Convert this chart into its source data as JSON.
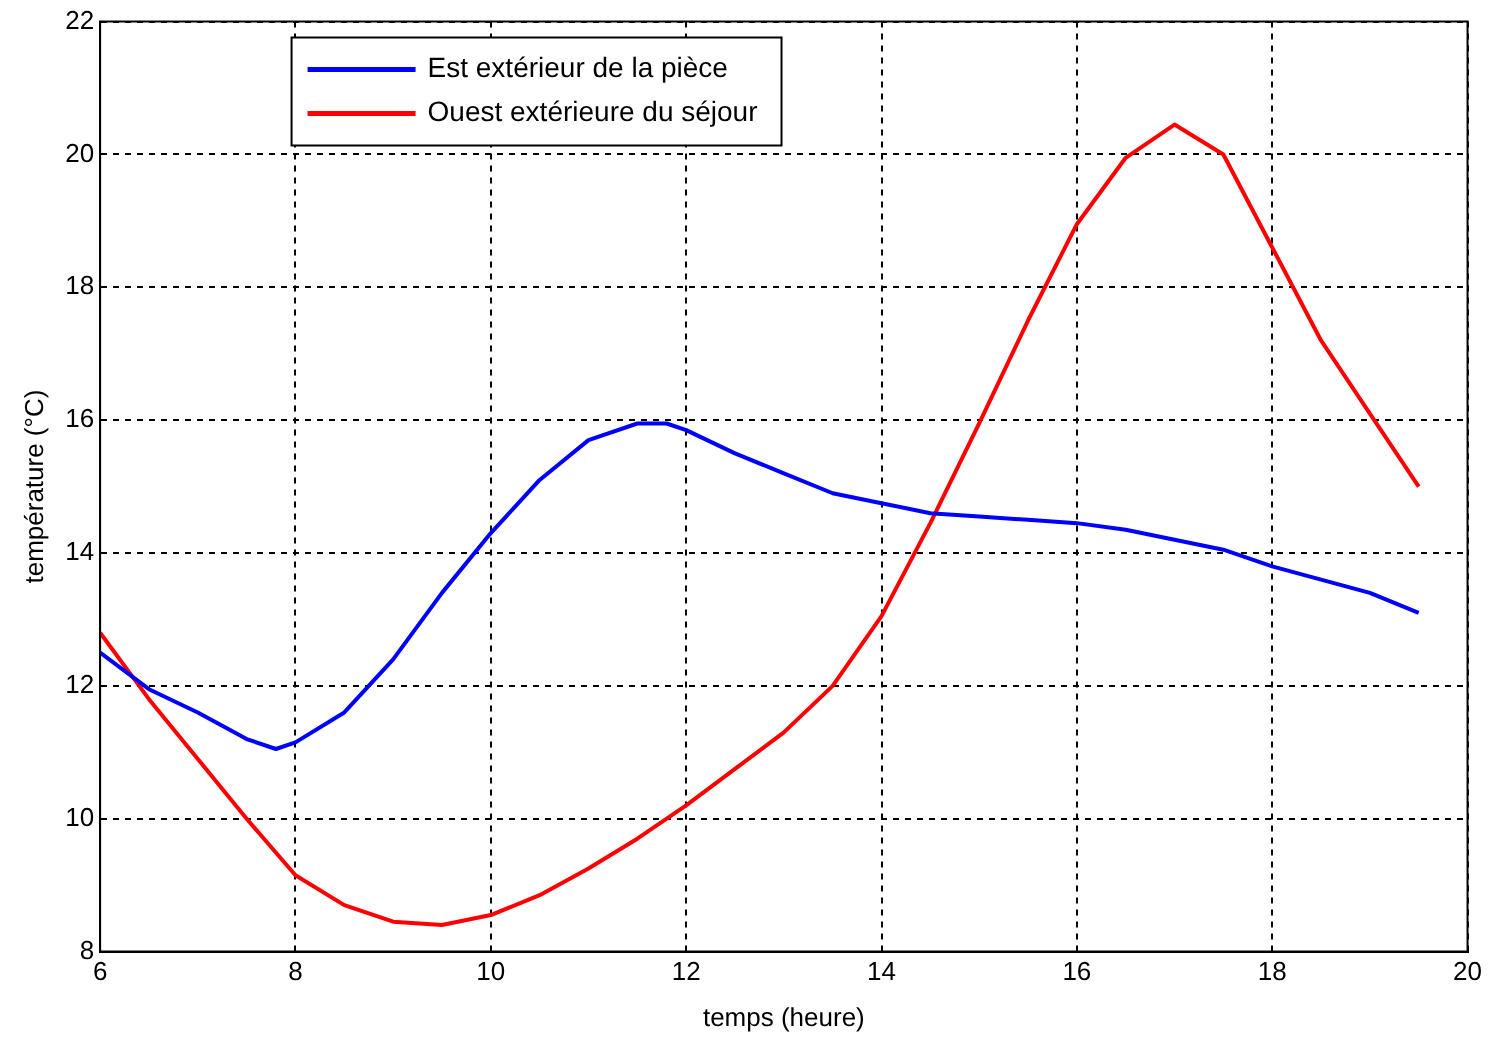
{
  "chart_data": {
    "type": "line",
    "xlabel": "temps (heure)",
    "ylabel": "température (°C)",
    "xlim": [
      6,
      20
    ],
    "xticks": [
      6,
      8,
      10,
      12,
      14,
      16,
      18,
      20
    ],
    "ylim": [
      8,
      22
    ],
    "yticks": [
      8,
      10,
      12,
      14,
      16,
      18,
      20,
      22
    ],
    "grid": true,
    "legend": "top",
    "series": [
      {
        "name": "Est extérieur de la pièce",
        "color": "#0000ff",
        "x": [
          6,
          6.5,
          7,
          7.5,
          7.8,
          8,
          8.5,
          9,
          9.5,
          10,
          10.5,
          11,
          11.5,
          11.8,
          12,
          12.5,
          13,
          13.5,
          14,
          14.5,
          15,
          15.5,
          16,
          16.5,
          17,
          17.5,
          18,
          18.5,
          19,
          19.5
        ],
        "values": [
          12.5,
          11.95,
          11.6,
          11.2,
          11.05,
          11.15,
          11.6,
          12.4,
          13.4,
          14.3,
          15.1,
          15.7,
          15.95,
          15.95,
          15.85,
          15.5,
          15.2,
          14.9,
          14.75,
          14.6,
          14.55,
          14.5,
          14.45,
          14.35,
          14.2,
          14.05,
          13.8,
          13.6,
          13.4,
          13.1
        ]
      },
      {
        "name": "Ouest extérieure du séjour",
        "color": "#ff0000",
        "x": [
          6,
          6.5,
          7,
          7.5,
          8,
          8.5,
          9,
          9.5,
          10,
          10.5,
          11,
          11.5,
          12,
          12.5,
          13,
          13.5,
          14,
          14.5,
          15,
          15.5,
          16,
          16.5,
          17,
          17.5,
          18,
          18.5,
          19,
          19.5
        ],
        "values": [
          12.8,
          11.8,
          10.9,
          10.0,
          9.15,
          8.7,
          8.45,
          8.4,
          8.55,
          8.85,
          9.25,
          9.7,
          10.2,
          10.75,
          11.3,
          12.0,
          13.05,
          14.45,
          15.95,
          17.5,
          18.95,
          19.95,
          20.45,
          20.0,
          18.6,
          17.2,
          16.1,
          15.0
        ]
      }
    ]
  }
}
